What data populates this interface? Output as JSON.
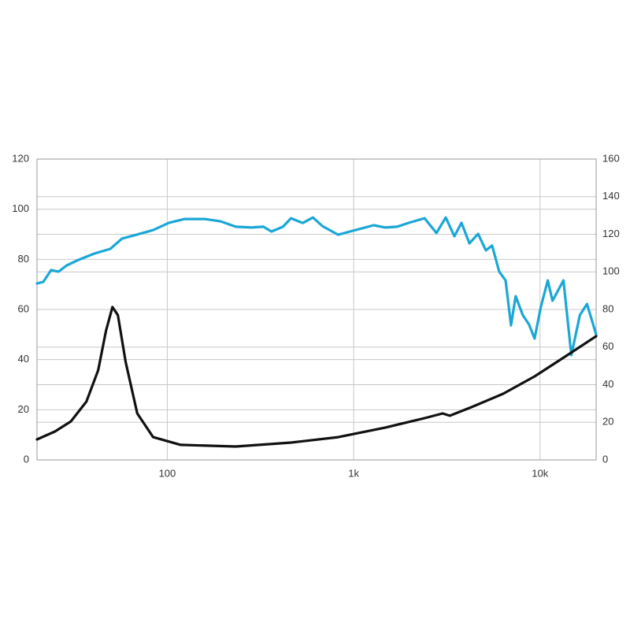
{
  "chart_data": {
    "type": "line",
    "x_scale": "log",
    "xlim": [
      20,
      20000
    ],
    "xticks": [
      100,
      {
        "value": 1000,
        "label": "1k"
      },
      {
        "value": 10000,
        "label": "10k"
      }
    ],
    "ylim": [
      0,
      120
    ],
    "yticks": [
      0,
      20,
      40,
      60,
      80,
      100,
      120
    ],
    "y2lim": [
      0,
      160
    ],
    "y2ticks": [
      0,
      20,
      40,
      60,
      80,
      100,
      120,
      140,
      160
    ],
    "grid": true,
    "series": [
      {
        "color": "#1aa7d6",
        "x": [
          20,
          21.6,
          23.8,
          26.1,
          28.9,
          33.4,
          40.6,
          49.5,
          57.2,
          66,
          84.2,
          102,
          124,
          158,
          192,
          233,
          283,
          328,
          362,
          418,
          461,
          533,
          605,
          679,
          826,
          955,
          1110,
          1280,
          1480,
          1710,
          1980,
          2400,
          2780,
          3120,
          3470,
          3790,
          4180,
          4650,
          5120,
          5530,
          6040,
          6530,
          6990,
          7400,
          8080,
          8730,
          9350,
          10090,
          11010,
          11670,
          13360,
          14720,
          16370,
          17870,
          20000
        ],
        "values": [
          70.4,
          71,
          75.7,
          75.1,
          77.6,
          79.8,
          82.3,
          84.2,
          88.3,
          89.5,
          91.7,
          94.6,
          96.1,
          96.1,
          95.2,
          93,
          92.7,
          93,
          91.1,
          93,
          96.4,
          94.5,
          96.7,
          93.3,
          89.8,
          91.1,
          92.4,
          93.6,
          92.7,
          93,
          94.6,
          96.4,
          90.5,
          96.7,
          89.2,
          94.6,
          86.4,
          90.2,
          83.6,
          85.5,
          75.1,
          71.6,
          53.7,
          65.3,
          57.8,
          54,
          48.4,
          60.9,
          71.6,
          63.5,
          71.6,
          41.8,
          57.8,
          62.2,
          50
        ]
      },
      {
        "color": "#111111",
        "axis": "y2",
        "x": [
          20,
          25,
          30.4,
          36.8,
          42.6,
          46.9,
          50.8,
          54.3,
          59.8,
          69,
          84,
          118,
          233,
          461,
          826,
          1480,
          2400,
          3000,
          3280,
          4300,
          6340,
          9350,
          13800,
          20000
        ],
        "values": [
          10.9,
          15.1,
          20.5,
          31,
          47.7,
          68.7,
          81.3,
          77,
          52,
          24.7,
          12.1,
          8,
          7.1,
          9.2,
          12.1,
          17.2,
          22.2,
          24.7,
          23.5,
          28.1,
          35.2,
          44.4,
          55.3,
          65.8
        ]
      }
    ]
  }
}
